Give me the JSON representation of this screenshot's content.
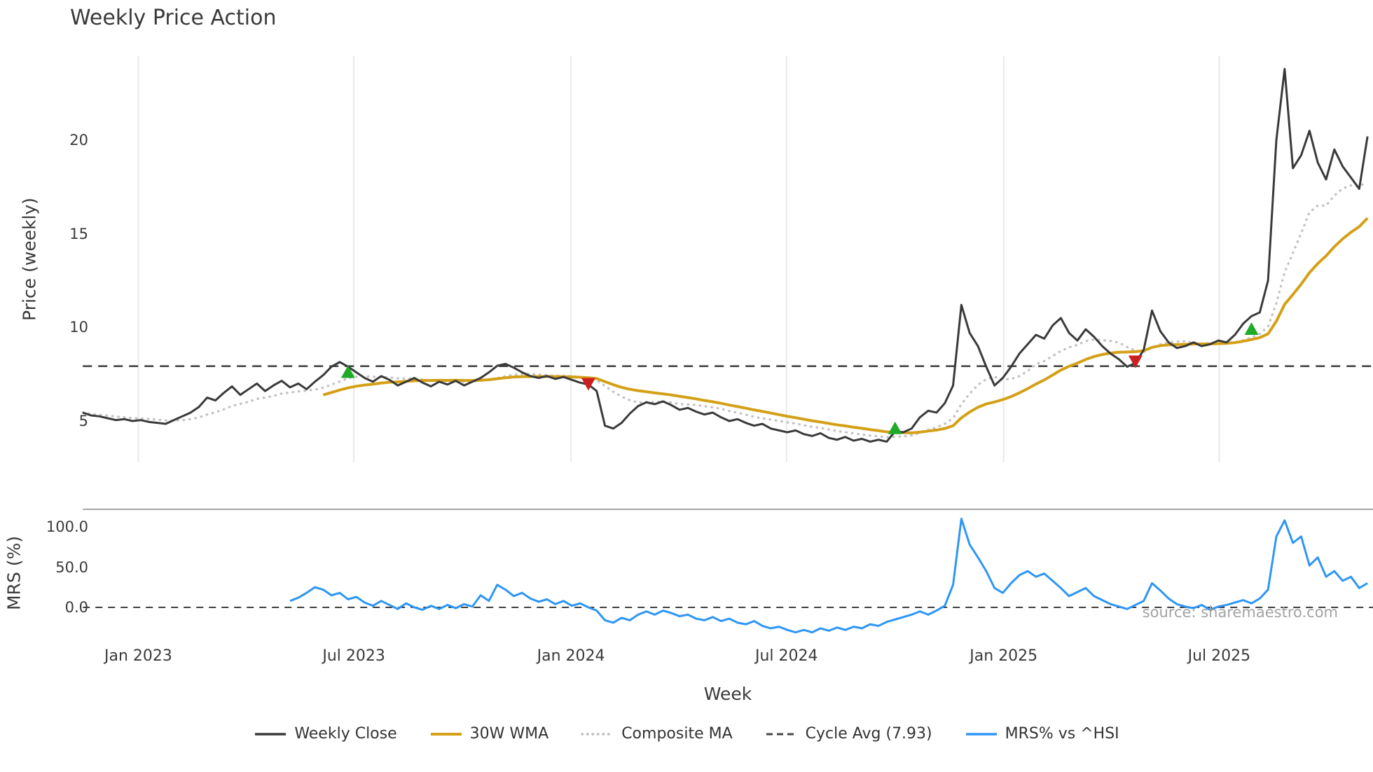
{
  "page": {
    "title": "Weekly Price Action",
    "source": "source: sharemaestro.com"
  },
  "legend": [
    {
      "label": "Weekly Close",
      "color": "#3a3a3a",
      "dash": "solid",
      "width": 3.5
    },
    {
      "label": "30W WMA",
      "color": "#d4a017",
      "dash": "solid",
      "width": 4
    },
    {
      "label": "Composite MA",
      "color": "#bdbdbd",
      "dash": "dotted",
      "width": 3.5
    },
    {
      "label": "Cycle Avg (7.93)",
      "color": "#454545",
      "dash": "dashed",
      "width": 3
    },
    {
      "label": "MRS% vs ^HSI",
      "color": "#2e96f5",
      "dash": "solid",
      "width": 3.5
    }
  ],
  "chart_data": {
    "type": "line",
    "title": "Weekly Price Action",
    "x_unit": "week_index",
    "colors": {
      "close": "#3a3a3a",
      "wma": "#d4a017",
      "composite": "#c3c3c3",
      "cycle": "#454545",
      "mrs": "#2e96f5",
      "buy": "#1faa28",
      "sell": "#cc1f1f",
      "grid": "#e7e7e7",
      "panel_border": "#9a9a9a",
      "zero_line": "#222222"
    },
    "x_axis": {
      "label": "Week",
      "total_weeks": 156,
      "ticks": [
        {
          "week": 6.7,
          "label": "Jan 2023"
        },
        {
          "week": 32.7,
          "label": "Jul 2023"
        },
        {
          "week": 58.9,
          "label": "Jan 2024"
        },
        {
          "week": 84.9,
          "label": "Jul 2024"
        },
        {
          "week": 111.1,
          "label": "Jan 2025"
        },
        {
          "week": 137.1,
          "label": "Jul 2025"
        }
      ]
    },
    "price_panel": {
      "ylabel": "Price (weekly)",
      "ylim": [
        2.8,
        24.5
      ],
      "yticks": [
        5,
        10,
        15,
        20
      ],
      "close": {
        "name": "Weekly Close",
        "start_week": 0,
        "values": [
          5.45,
          5.3,
          5.25,
          5.15,
          5.05,
          5.1,
          5.0,
          5.05,
          4.95,
          4.9,
          4.85,
          5.05,
          5.25,
          5.45,
          5.75,
          6.25,
          6.1,
          6.5,
          6.85,
          6.4,
          6.7,
          7.0,
          6.6,
          6.9,
          7.15,
          6.8,
          7.0,
          6.7,
          7.1,
          7.45,
          7.9,
          8.15,
          7.9,
          7.6,
          7.3,
          7.1,
          7.4,
          7.2,
          6.9,
          7.1,
          7.3,
          7.05,
          6.85,
          7.1,
          6.95,
          7.15,
          6.9,
          7.1,
          7.3,
          7.6,
          7.95,
          8.05,
          7.85,
          7.6,
          7.4,
          7.3,
          7.4,
          7.25,
          7.35,
          7.2,
          7.05,
          6.95,
          6.6,
          4.75,
          4.6,
          4.9,
          5.4,
          5.8,
          6.0,
          5.9,
          6.05,
          5.85,
          5.6,
          5.7,
          5.5,
          5.35,
          5.45,
          5.2,
          5.0,
          5.1,
          4.9,
          4.75,
          4.85,
          4.6,
          4.5,
          4.4,
          4.5,
          4.3,
          4.2,
          4.35,
          4.1,
          4.0,
          4.15,
          3.95,
          4.05,
          3.9,
          4.0,
          3.9,
          4.45,
          4.4,
          4.6,
          5.2,
          5.55,
          5.45,
          5.95,
          6.9,
          11.2,
          9.7,
          9.0,
          7.9,
          6.9,
          7.3,
          7.9,
          8.6,
          9.1,
          9.6,
          9.4,
          10.1,
          10.5,
          9.7,
          9.3,
          9.9,
          9.5,
          9.0,
          8.6,
          8.3,
          7.9,
          8.1,
          8.8,
          10.9,
          9.8,
          9.2,
          8.9,
          9.0,
          9.2,
          9.0,
          9.1,
          9.3,
          9.2,
          9.6,
          10.2,
          10.6,
          10.8,
          12.5,
          20.0,
          23.8,
          18.5,
          19.2,
          20.5,
          18.8,
          17.9,
          19.5,
          18.6,
          18.0,
          17.4,
          20.2
        ]
      },
      "wma": {
        "name": "30W WMA",
        "window": 30
      },
      "composite": {
        "name": "Composite MA",
        "windows": [
          5,
          10,
          20
        ]
      },
      "cycle_avg": {
        "name": "Cycle Avg (7.93)",
        "value": 7.93
      },
      "signals": {
        "buy": [
          {
            "week": 32,
            "price": 7.6
          },
          {
            "week": 98,
            "price": 4.6
          },
          {
            "week": 141,
            "price": 9.9
          }
        ],
        "sell": [
          {
            "week": 61,
            "price": 7.0
          },
          {
            "week": 127,
            "price": 8.2
          }
        ]
      }
    },
    "mrs_panel": {
      "ylabel": "MRS (%)",
      "ylim": [
        -37,
        122
      ],
      "yticks": [
        0,
        50,
        100
      ],
      "ytick_labels": [
        "0.0",
        "50.0",
        "100.0"
      ],
      "zero_line": 0,
      "series": {
        "name": "MRS% vs ^HSI",
        "start_week": 25,
        "values": [
          8,
          12,
          18,
          25,
          22,
          15,
          18,
          10,
          13,
          6,
          2,
          8,
          3,
          -2,
          5,
          0,
          -3,
          2,
          -2,
          3,
          -1,
          4,
          1,
          15,
          8,
          28,
          22,
          14,
          18,
          11,
          7,
          10,
          4,
          8,
          2,
          5,
          0,
          -4,
          -16,
          -19,
          -13,
          -16,
          -9,
          -5,
          -9,
          -4,
          -7,
          -11,
          -9,
          -14,
          -16,
          -12,
          -17,
          -14,
          -19,
          -21,
          -17,
          -23,
          -26,
          -24,
          -28,
          -31,
          -28,
          -31,
          -26,
          -29,
          -25,
          -28,
          -24,
          -26,
          -21,
          -23,
          -18,
          -15,
          -12,
          -9,
          -5,
          -9,
          -4,
          2,
          28,
          110,
          78,
          62,
          45,
          24,
          18,
          30,
          40,
          45,
          38,
          42,
          33,
          24,
          14,
          19,
          24,
          14,
          9,
          4,
          1,
          -2,
          3,
          8,
          30,
          21,
          11,
          4,
          1,
          -1,
          3,
          -3,
          1,
          3,
          6,
          9,
          5,
          11,
          22,
          88,
          108,
          80,
          88,
          52,
          62,
          38,
          45,
          33,
          38,
          24,
          30
        ]
      }
    }
  }
}
